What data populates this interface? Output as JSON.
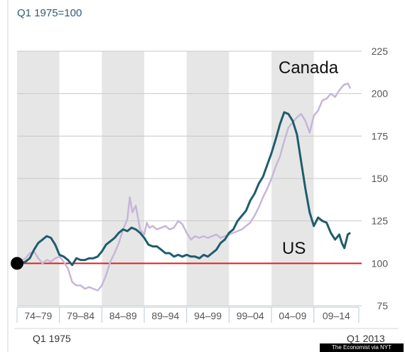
{
  "chart_data": {
    "type": "line",
    "unit_label": "Q1 1975=100",
    "ylim": [
      75,
      225
    ],
    "y_ticks": [
      75,
      100,
      125,
      150,
      175,
      200,
      225
    ],
    "xlim": [
      1974.0,
      2014.3
    ],
    "periods": [
      {
        "label": "74–79",
        "start": 1974.0,
        "end": 1979.0,
        "shaded": false
      },
      {
        "label": "79–84",
        "start": 1979.0,
        "end": 1984.0,
        "shaded": false
      },
      {
        "label": "84–89",
        "start": 1984.0,
        "end": 1989.0,
        "shaded": true
      },
      {
        "label": "89–94",
        "start": 1989.0,
        "end": 1994.0,
        "shaded": false
      },
      {
        "label": "94–99",
        "start": 1994.0,
        "end": 1999.0,
        "shaded": false
      },
      {
        "label": "99–04",
        "start": 1999.0,
        "end": 2004.0,
        "shaded": false
      },
      {
        "label": "04–09",
        "start": 2004.0,
        "end": 2009.0,
        "shaded": true
      },
      {
        "label": "09–14",
        "start": 2009.0,
        "end": 2014.3,
        "shaded": false
      }
    ],
    "x_start_label": "Q1 1975",
    "x_end_label": "Q1 2013",
    "baseline": {
      "value": 100,
      "color": "#e02020"
    },
    "start_marker": {
      "x": 1974.0,
      "y": 100
    },
    "series": [
      {
        "name": "Canada",
        "color": "#c7b6d8",
        "points": [
          [
            1974.0,
            100
          ],
          [
            1975.0,
            103
          ],
          [
            1975.5,
            106
          ],
          [
            1976.0,
            107
          ],
          [
            1976.5,
            103
          ],
          [
            1977.0,
            100
          ],
          [
            1977.5,
            102
          ],
          [
            1978.0,
            101
          ],
          [
            1978.5,
            103
          ],
          [
            1979.0,
            104
          ],
          [
            1979.5,
            101
          ],
          [
            1980.0,
            97
          ],
          [
            1980.5,
            89
          ],
          [
            1981.0,
            87
          ],
          [
            1981.5,
            87
          ],
          [
            1982.0,
            85
          ],
          [
            1982.5,
            86
          ],
          [
            1983.0,
            85
          ],
          [
            1983.5,
            84
          ],
          [
            1984.0,
            87
          ],
          [
            1984.5,
            93
          ],
          [
            1985.0,
            101
          ],
          [
            1985.5,
            106
          ],
          [
            1986.0,
            112
          ],
          [
            1986.5,
            120
          ],
          [
            1987.0,
            126
          ],
          [
            1987.3,
            139
          ],
          [
            1987.6,
            130
          ],
          [
            1988.0,
            134
          ],
          [
            1988.5,
            120
          ],
          [
            1989.0,
            117
          ],
          [
            1989.3,
            124
          ],
          [
            1989.6,
            121
          ],
          [
            1990.0,
            122
          ],
          [
            1990.5,
            120
          ],
          [
            1991.0,
            121
          ],
          [
            1991.5,
            122
          ],
          [
            1992.0,
            120
          ],
          [
            1992.5,
            121
          ],
          [
            1993.0,
            125
          ],
          [
            1993.5,
            123
          ],
          [
            1994.0,
            118
          ],
          [
            1994.5,
            114
          ],
          [
            1995.0,
            116
          ],
          [
            1995.5,
            115
          ],
          [
            1996.0,
            116
          ],
          [
            1996.5,
            115
          ],
          [
            1997.0,
            116
          ],
          [
            1997.5,
            117
          ],
          [
            1998.0,
            115
          ],
          [
            1998.5,
            116
          ],
          [
            1999.0,
            117
          ],
          [
            1999.5,
            118
          ],
          [
            2000.0,
            119
          ],
          [
            2000.5,
            120
          ],
          [
            2001.0,
            122
          ],
          [
            2001.5,
            124
          ],
          [
            2002.0,
            128
          ],
          [
            2002.5,
            133
          ],
          [
            2003.0,
            139
          ],
          [
            2003.5,
            144
          ],
          [
            2004.0,
            150
          ],
          [
            2004.5,
            157
          ],
          [
            2005.0,
            163
          ],
          [
            2005.5,
            172
          ],
          [
            2006.0,
            180
          ],
          [
            2006.5,
            183
          ],
          [
            2007.0,
            186
          ],
          [
            2007.5,
            188
          ],
          [
            2008.0,
            184
          ],
          [
            2008.5,
            177
          ],
          [
            2009.0,
            187
          ],
          [
            2009.5,
            190
          ],
          [
            2010.0,
            196
          ],
          [
            2010.5,
            197
          ],
          [
            2011.0,
            200
          ],
          [
            2011.5,
            198
          ],
          [
            2012.0,
            202
          ],
          [
            2012.5,
            205
          ],
          [
            2013.0,
            206
          ],
          [
            2013.3,
            203
          ]
        ]
      },
      {
        "name": "US",
        "color": "#1f5c6e",
        "points": [
          [
            1974.0,
            100
          ],
          [
            1974.5,
            100
          ],
          [
            1975.0,
            101
          ],
          [
            1975.5,
            103
          ],
          [
            1976.0,
            108
          ],
          [
            1976.5,
            112
          ],
          [
            1977.0,
            114
          ],
          [
            1977.5,
            116
          ],
          [
            1978.0,
            115
          ],
          [
            1978.5,
            111
          ],
          [
            1979.0,
            105
          ],
          [
            1979.5,
            104
          ],
          [
            1980.0,
            102
          ],
          [
            1980.5,
            99
          ],
          [
            1981.0,
            103
          ],
          [
            1981.5,
            102
          ],
          [
            1982.0,
            102
          ],
          [
            1982.5,
            103
          ],
          [
            1983.0,
            103
          ],
          [
            1983.5,
            104
          ],
          [
            1984.0,
            107
          ],
          [
            1984.5,
            111
          ],
          [
            1985.0,
            113
          ],
          [
            1985.5,
            115
          ],
          [
            1986.0,
            118
          ],
          [
            1986.5,
            120
          ],
          [
            1987.0,
            119
          ],
          [
            1987.5,
            121
          ],
          [
            1988.0,
            120
          ],
          [
            1988.5,
            118
          ],
          [
            1989.0,
            115
          ],
          [
            1989.5,
            111
          ],
          [
            1990.0,
            110
          ],
          [
            1990.5,
            110
          ],
          [
            1991.0,
            108
          ],
          [
            1991.5,
            106
          ],
          [
            1992.0,
            106
          ],
          [
            1992.5,
            104
          ],
          [
            1993.0,
            105
          ],
          [
            1993.5,
            104
          ],
          [
            1994.0,
            105
          ],
          [
            1994.5,
            104
          ],
          [
            1995.0,
            104
          ],
          [
            1995.5,
            103
          ],
          [
            1996.0,
            105
          ],
          [
            1996.5,
            104
          ],
          [
            1997.0,
            106
          ],
          [
            1997.5,
            108
          ],
          [
            1998.0,
            112
          ],
          [
            1998.5,
            114
          ],
          [
            1999.0,
            118
          ],
          [
            1999.5,
            120
          ],
          [
            2000.0,
            125
          ],
          [
            2000.5,
            128
          ],
          [
            2001.0,
            131
          ],
          [
            2001.5,
            137
          ],
          [
            2002.0,
            141
          ],
          [
            2002.5,
            147
          ],
          [
            2003.0,
            151
          ],
          [
            2003.5,
            158
          ],
          [
            2004.0,
            165
          ],
          [
            2004.5,
            173
          ],
          [
            2005.0,
            182
          ],
          [
            2005.5,
            189
          ],
          [
            2006.0,
            188
          ],
          [
            2006.5,
            184
          ],
          [
            2007.0,
            176
          ],
          [
            2007.5,
            160
          ],
          [
            2008.0,
            144
          ],
          [
            2008.5,
            130
          ],
          [
            2009.0,
            122
          ],
          [
            2009.5,
            127
          ],
          [
            2010.0,
            125
          ],
          [
            2010.5,
            124
          ],
          [
            2011.0,
            118
          ],
          [
            2011.5,
            114
          ],
          [
            2012.0,
            117
          ],
          [
            2012.3,
            112
          ],
          [
            2012.6,
            109
          ],
          [
            2013.0,
            117
          ],
          [
            2013.3,
            118
          ]
        ]
      }
    ],
    "annotations": [
      {
        "text": "Canada",
        "series": "Canada"
      },
      {
        "text": "US",
        "series": "US"
      }
    ]
  },
  "credit": "The Economist via NYT"
}
